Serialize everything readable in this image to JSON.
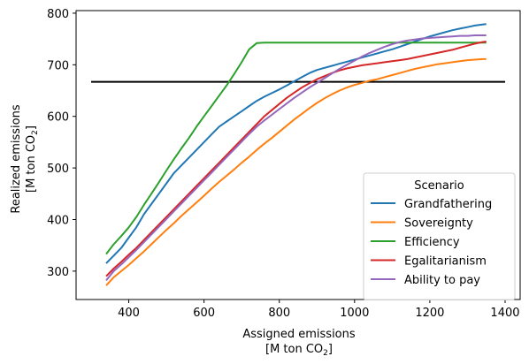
{
  "chart_data": {
    "type": "line",
    "xlabel_line1": "Assigned emissions",
    "xlabel_line2_prefix": "[M ton CO",
    "xlabel_line2_sub": "2",
    "xlabel_line2_suffix": "]",
    "ylabel_line1": "Realized emissions",
    "ylabel_line2_prefix": "[M ton CO",
    "ylabel_line2_sub": "2",
    "ylabel_line2_suffix": "]",
    "xlim": [
      260,
      1440
    ],
    "ylim": [
      245,
      805
    ],
    "xticks": [
      "400",
      "600",
      "800",
      "1000",
      "1200",
      "1400"
    ],
    "yticks": [
      "300",
      "400",
      "500",
      "600",
      "700",
      "800"
    ],
    "legend_title": "Scenario",
    "legend_position": "lower right",
    "reference_line": {
      "y": 667,
      "x_start": 300,
      "x_end": 1400,
      "color": "#000000"
    },
    "x": [
      340,
      360,
      380,
      400,
      420,
      440,
      460,
      480,
      500,
      520,
      540,
      560,
      580,
      600,
      620,
      640,
      660,
      680,
      700,
      720,
      740,
      760,
      780,
      800,
      820,
      840,
      860,
      880,
      900,
      920,
      940,
      960,
      980,
      1000,
      1020,
      1040,
      1060,
      1080,
      1100,
      1120,
      1140,
      1160,
      1180,
      1200,
      1220,
      1240,
      1260,
      1280,
      1300,
      1320,
      1340,
      1350
    ],
    "series": [
      {
        "name": "Grandfathering",
        "color": "#1f77b4",
        "values": [
          315,
          330,
          345,
          365,
          385,
          410,
          430,
          450,
          470,
          490,
          505,
          520,
          535,
          550,
          565,
          580,
          590,
          600,
          610,
          620,
          630,
          638,
          645,
          652,
          660,
          668,
          676,
          684,
          690,
          694,
          698,
          702,
          706,
          710,
          714,
          718,
          722,
          726,
          730,
          735,
          740,
          745,
          750,
          755,
          759,
          763,
          767,
          770,
          773,
          776,
          778,
          779
        ]
      },
      {
        "name": "Sovereignty",
        "color": "#ff7f0e",
        "values": [
          272,
          288,
          300,
          312,
          325,
          338,
          352,
          366,
          380,
          393,
          407,
          420,
          433,
          446,
          460,
          473,
          485,
          497,
          510,
          522,
          535,
          547,
          558,
          570,
          582,
          594,
          605,
          616,
          626,
          635,
          643,
          650,
          656,
          661,
          665,
          669,
          672,
          676,
          680,
          684,
          688,
          692,
          695,
          698,
          701,
          703,
          705,
          707,
          709,
          710,
          711,
          711
        ]
      },
      {
        "name": "Efficiency",
        "color": "#2ca02c",
        "values": [
          333,
          352,
          368,
          385,
          405,
          428,
          450,
          472,
          495,
          517,
          538,
          558,
          580,
          600,
          620,
          640,
          660,
          682,
          705,
          730,
          742,
          743,
          743,
          743,
          743,
          743,
          743,
          743,
          743,
          743,
          743,
          743,
          743,
          743,
          743,
          743,
          743,
          743,
          743,
          743,
          743,
          743,
          743,
          743,
          743,
          743,
          743,
          743,
          743,
          743,
          743,
          743
        ]
      },
      {
        "name": "Egalitarianism",
        "color": "#d62728",
        "values": [
          290,
          305,
          318,
          332,
          345,
          360,
          375,
          390,
          405,
          420,
          435,
          450,
          465,
          480,
          495,
          510,
          525,
          540,
          555,
          570,
          585,
          600,
          612,
          624,
          636,
          646,
          656,
          664,
          672,
          678,
          684,
          689,
          693,
          696,
          699,
          701,
          703,
          705,
          707,
          709,
          711,
          714,
          717,
          720,
          723,
          726,
          729,
          733,
          737,
          741,
          744,
          745
        ]
      },
      {
        "name": "Ability to pay",
        "color": "#9467bd",
        "values": [
          282,
          300,
          313,
          327,
          341,
          356,
          371,
          386,
          401,
          416,
          431,
          446,
          461,
          476,
          491,
          506,
          521,
          536,
          551,
          566,
          580,
          592,
          603,
          614,
          625,
          636,
          646,
          656,
          665,
          674,
          683,
          692,
          700,
          708,
          716,
          723,
          729,
          735,
          740,
          744,
          747,
          749,
          751,
          752,
          753,
          754,
          755,
          756,
          756,
          757,
          757,
          757
        ]
      }
    ]
  }
}
